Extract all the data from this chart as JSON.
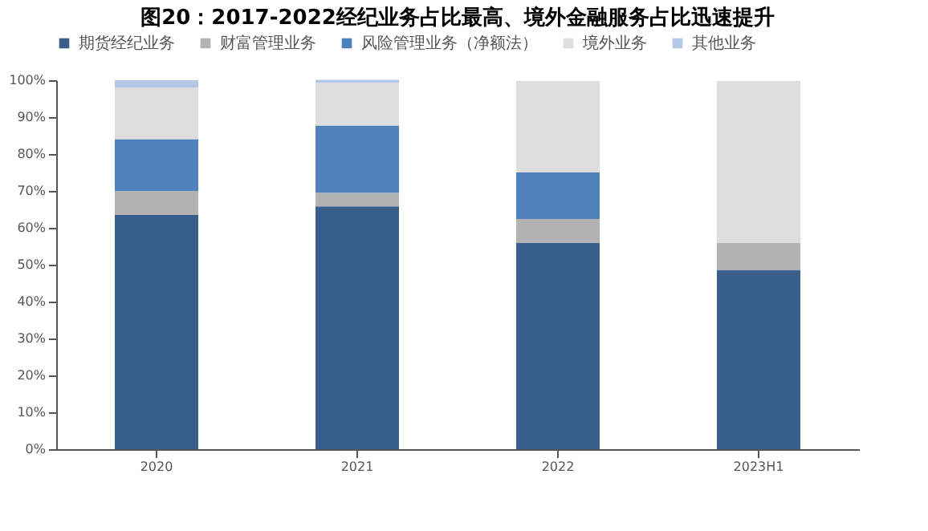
{
  "chart_data": {
    "type": "bar",
    "stacked": true,
    "title": "图20：2017-2022经纪业务占比最高、境外金融服务占比迅速提升",
    "categories": [
      "2020",
      "2021",
      "2022",
      "2023H1"
    ],
    "series": [
      {
        "name": "期货经纪业务",
        "color": "#3a5e8c",
        "values": [
          63.5,
          65.8,
          56,
          48.6
        ]
      },
      {
        "name": "财富管理业务",
        "color": "#b3b3b3",
        "values": [
          6.5,
          3.7,
          6.4,
          7.4
        ]
      },
      {
        "name": "风险管理业务（净额法）",
        "color": "#4f81bd",
        "values": [
          14,
          18.2,
          12.6,
          0
        ]
      },
      {
        "name": "境外业务",
        "color": "#dedede",
        "values": [
          14,
          11.6,
          24.8,
          43.8
        ]
      },
      {
        "name": "其他业务",
        "color": "#b4c7e7",
        "values": [
          2,
          0.8,
          null,
          null
        ]
      }
    ],
    "ylim": [
      0,
      100
    ],
    "yticks": [
      {
        "value": 0,
        "label": "0%"
      },
      {
        "value": 10,
        "label": "10%"
      },
      {
        "value": 20,
        "label": "20%"
      },
      {
        "value": 30,
        "label": "30%"
      },
      {
        "value": 40,
        "label": "40%"
      },
      {
        "value": 50,
        "label": "50%"
      },
      {
        "value": 60,
        "label": "60%"
      },
      {
        "value": 70,
        "label": "70%"
      },
      {
        "value": 80,
        "label": "80%"
      },
      {
        "value": 90,
        "label": "90%"
      },
      {
        "value": 100,
        "label": "100%"
      }
    ],
    "grid": false,
    "legend": "top"
  }
}
